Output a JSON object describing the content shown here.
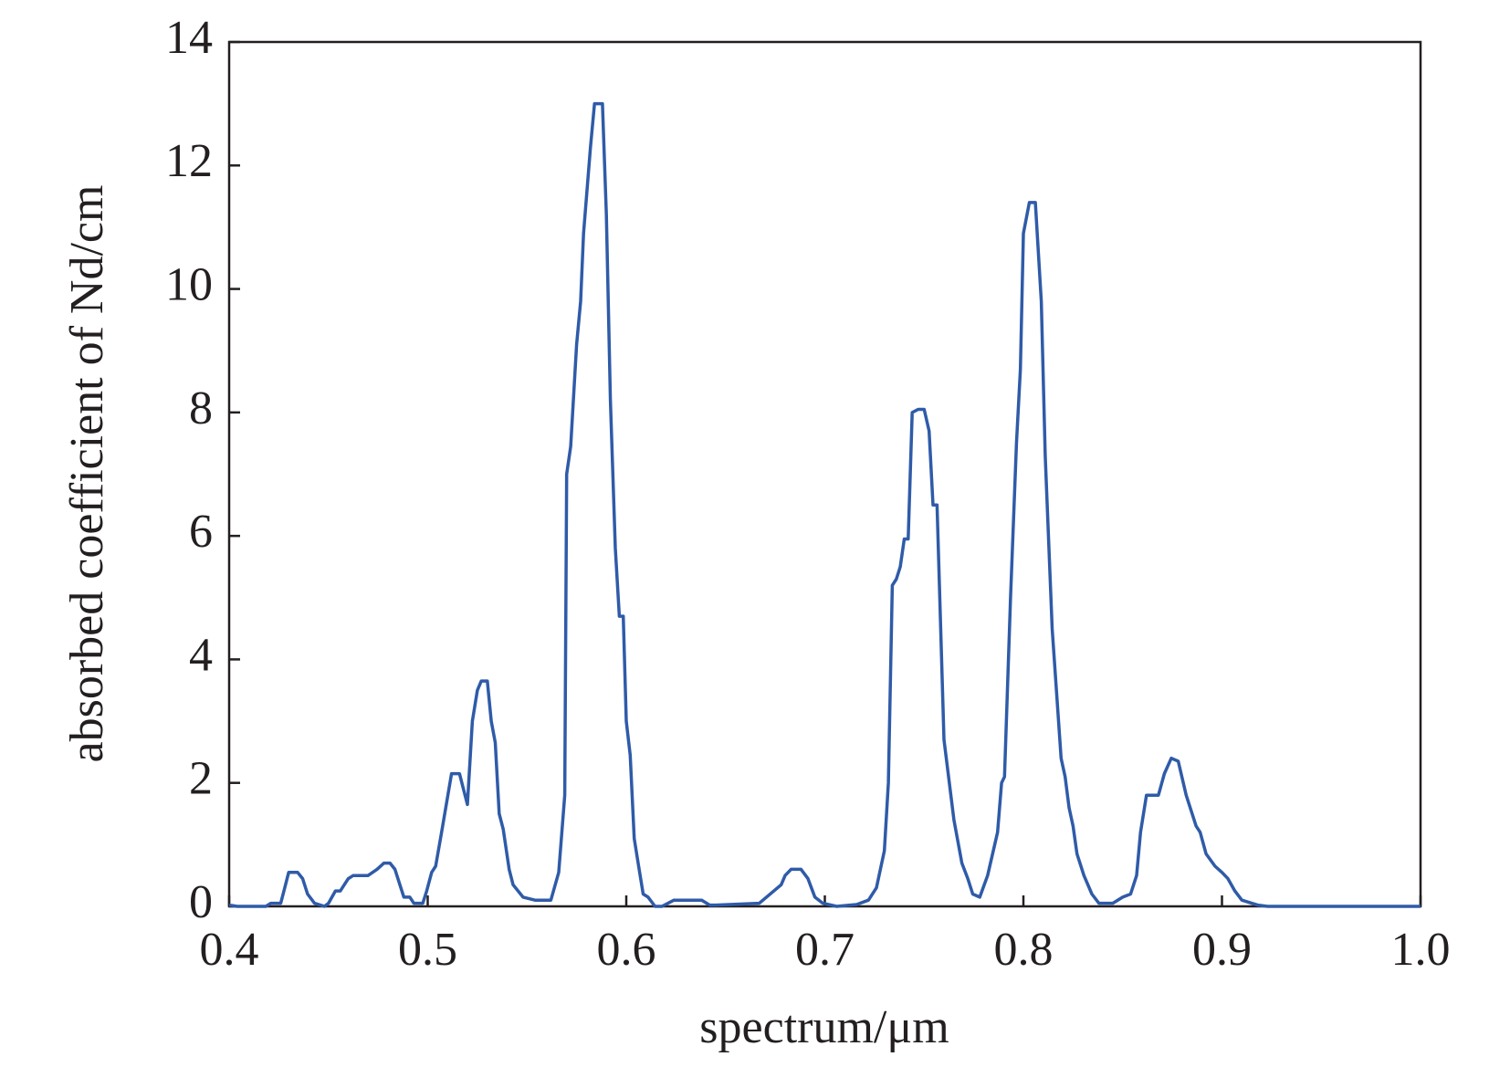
{
  "chart_data": {
    "type": "line",
    "x_label": "spectrum/μm",
    "y_label": "absorbed coefficient of Nd/cm",
    "x": [
      0.4,
      0.404,
      0.4185,
      0.421,
      0.426,
      0.428,
      0.43,
      0.4345,
      0.437,
      0.4395,
      0.443,
      0.448,
      0.45,
      0.4535,
      0.456,
      0.46,
      0.4625,
      0.47,
      0.4745,
      0.478,
      0.481,
      0.4835,
      0.486,
      0.488,
      0.491,
      0.493,
      0.4975,
      0.4995,
      0.502,
      0.504,
      0.507,
      0.512,
      0.516,
      0.52,
      0.5225,
      0.525,
      0.527,
      0.53,
      0.532,
      0.534,
      0.536,
      0.538,
      0.541,
      0.543,
      0.548,
      0.554,
      0.562,
      0.566,
      0.569,
      0.57,
      0.572,
      0.575,
      0.577,
      0.5785,
      0.582,
      0.584,
      0.588,
      0.59,
      0.592,
      0.5945,
      0.5965,
      0.5985,
      0.6,
      0.602,
      0.604,
      0.606,
      0.6085,
      0.611,
      0.6145,
      0.618,
      0.624,
      0.638,
      0.642,
      0.645,
      0.667,
      0.678,
      0.68,
      0.683,
      0.688,
      0.6915,
      0.695,
      0.699,
      0.706,
      0.716,
      0.722,
      0.726,
      0.73,
      0.732,
      0.734,
      0.736,
      0.738,
      0.74,
      0.742,
      0.744,
      0.747,
      0.75,
      0.7525,
      0.7545,
      0.7565,
      0.76,
      0.765,
      0.769,
      0.772,
      0.7745,
      0.778,
      0.782,
      0.787,
      0.789,
      0.7905,
      0.7935,
      0.7965,
      0.7985,
      0.8,
      0.803,
      0.806,
      0.809,
      0.811,
      0.8145,
      0.819,
      0.821,
      0.823,
      0.825,
      0.827,
      0.8305,
      0.8345,
      0.838,
      0.845,
      0.85,
      0.854,
      0.857,
      0.859,
      0.862,
      0.868,
      0.871,
      0.8745,
      0.878,
      0.882,
      0.887,
      0.889,
      0.892,
      0.8965,
      0.9,
      0.903,
      0.9065,
      0.91,
      0.915,
      0.918,
      0.923,
      1.0
    ],
    "values": [
      0.02,
      0,
      0,
      0.05,
      0.05,
      0.3,
      0.55,
      0.55,
      0.45,
      0.2,
      0.05,
      0,
      0.05,
      0.25,
      0.25,
      0.45,
      0.5,
      0.5,
      0.6,
      0.7,
      0.7,
      0.6,
      0.35,
      0.15,
      0.15,
      0.05,
      0.05,
      0.25,
      0.55,
      0.65,
      1.2,
      2.15,
      2.15,
      1.65,
      3.0,
      3.5,
      3.65,
      3.65,
      3.0,
      2.65,
      1.5,
      1.25,
      0.6,
      0.35,
      0.15,
      0.1,
      0.1,
      0.55,
      1.8,
      7.0,
      7.45,
      9.1,
      9.8,
      10.9,
      12.3,
      13.0,
      13.0,
      11.2,
      8.2,
      5.8,
      4.7,
      4.7,
      3.0,
      2.45,
      1.1,
      0.7,
      0.2,
      0.15,
      0,
      0,
      0.1,
      0.1,
      0.02,
      0.02,
      0.05,
      0.35,
      0.5,
      0.6,
      0.6,
      0.45,
      0.15,
      0.05,
      0,
      0.03,
      0.1,
      0.3,
      0.9,
      2.0,
      5.2,
      5.3,
      5.5,
      5.95,
      5.95,
      8.0,
      8.05,
      8.05,
      7.7,
      6.5,
      6.5,
      2.7,
      1.4,
      0.7,
      0.45,
      0.2,
      0.15,
      0.5,
      1.2,
      2.0,
      2.1,
      5.0,
      7.5,
      8.7,
      10.9,
      11.4,
      11.4,
      9.8,
      7.3,
      4.5,
      2.4,
      2.1,
      1.6,
      1.3,
      0.85,
      0.5,
      0.2,
      0.05,
      0.05,
      0.15,
      0.2,
      0.5,
      1.2,
      1.8,
      1.8,
      2.15,
      2.4,
      2.35,
      1.8,
      1.3,
      1.2,
      0.85,
      0.65,
      0.55,
      0.45,
      0.25,
      0.1,
      0.05,
      0.02,
      0,
      0
    ],
    "color": "#2f5ba8",
    "xlim": [
      0.4,
      1.0
    ],
    "xticks": [
      0.4,
      0.5,
      0.6,
      0.7,
      0.8,
      0.9,
      {
        "value": 1,
        "label": "1.0"
      }
    ],
    "ylim": [
      0,
      14
    ],
    "yticks": [
      0,
      2,
      4,
      6,
      8,
      10,
      12,
      14
    ]
  }
}
